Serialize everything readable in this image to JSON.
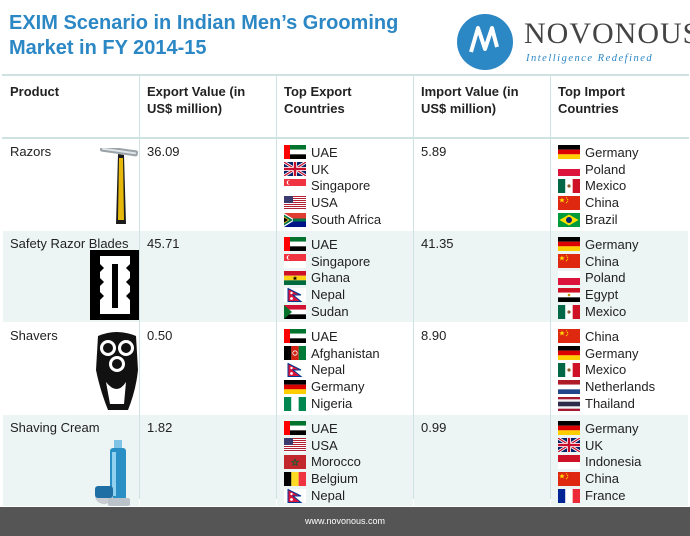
{
  "title": "EXIM Scenario in Indian Men’s Grooming Market in FY 2014-15",
  "logo": {
    "name": "NOVONOUS",
    "tagline": "Intelligence Redefined",
    "icon": "novonous-mark-icon",
    "color": "#2c87c5"
  },
  "table": {
    "headers": [
      "Product",
      "Export Value (in US$ million)",
      "Top Export Countries",
      "Import Value (in US$ million)",
      "Top Import Countries"
    ],
    "rows": [
      {
        "product": "Razors",
        "image": "razor-icon",
        "export_value": "36.09",
        "export_countries": [
          "UAE",
          "UK",
          "Singapore",
          "USA",
          "South Africa"
        ],
        "import_value": "5.89",
        "import_countries": [
          "Germany",
          "Poland",
          "Mexico",
          "China",
          "Brazil"
        ]
      },
      {
        "product": "Safety Razor Blades",
        "image": "razor-blade-icon",
        "export_value": "45.71",
        "export_countries": [
          "UAE",
          "Singapore",
          "Ghana",
          "Nepal",
          "Sudan"
        ],
        "import_value": "41.35",
        "import_countries": [
          "Germany",
          "China",
          "Poland",
          "Egypt",
          "Mexico"
        ]
      },
      {
        "product": "Shavers",
        "image": "electric-shaver-icon",
        "export_value": "0.50",
        "export_countries": [
          "UAE",
          "Afghanistan",
          "Nepal",
          "Germany",
          "Nigeria"
        ],
        "import_value": "8.90",
        "import_countries": [
          "China",
          "Germany",
          "Mexico",
          "Netherlands",
          "Thailand"
        ]
      },
      {
        "product": "Shaving Cream",
        "image": "shaving-cream-can-icon",
        "export_value": "1.82",
        "export_countries": [
          "UAE",
          "USA",
          "Morocco",
          "Belgium",
          "Nepal"
        ],
        "import_value": "0.99",
        "import_countries": [
          "Germany",
          "UK",
          "Indonesia",
          "China",
          "France"
        ]
      }
    ]
  },
  "footer": {
    "url": "www.novonous.com"
  },
  "colors": {
    "title": "#2c87c5",
    "row_alt": "#edf4f4",
    "footer": "#555555",
    "border": "#cfe2e2"
  }
}
